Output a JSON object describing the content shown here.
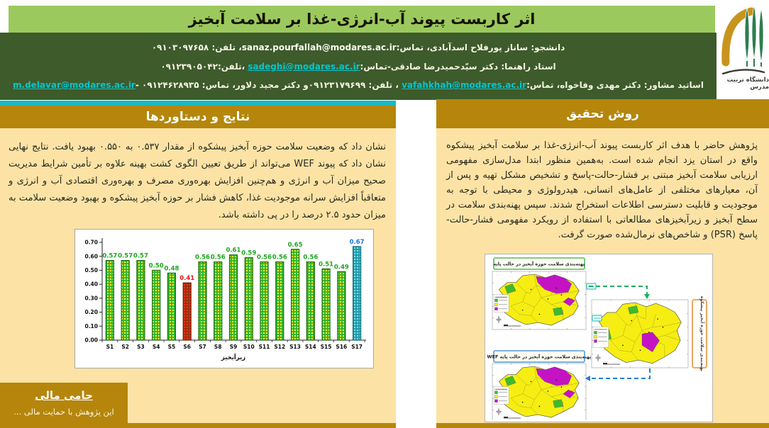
{
  "header": {
    "title": "اثر کاربست پیوند آب-انرژی-غذا بر سلامت آبخیز",
    "logo_text": "دانشگاه تربیت مدرس",
    "contact": {
      "line1": {
        "p1": "دانشجو: ساناز پورفلاح اسدآبادی، تماس:",
        "email": "sanaz.pourfallah@modares.ac.ir",
        "p2": "، تلفن: ۰۹۱۰۳۰۹۷۶۵۸"
      },
      "line2": {
        "p1": "استاد راهنما: دکتر سیّدحمیدرضا صادقی-تماس:",
        "email": "sadeghi@modares.ac.ir",
        "p2": " ،تلفن:۰۹۱۲۳۹۰۵۰۴۲"
      },
      "line3": {
        "p1": "اساتید مشاور: دکتر مهدی وفاخواه، تماس:",
        "email1": "vafahkhah@modares.ac.ir",
        "p2": " ، تلفن: ۰۹۱۲۳۱۷۹۶۹۹و دکتر مجید دلاور، تماس: ",
        "email2": "m.delavar@modares.ac.ir",
        "p3": "- ۰۹۱۲۴۶۲۸۹۳۵"
      }
    }
  },
  "sections": {
    "results": {
      "title": "نتایج و دستاوردها",
      "body": "نشان داد که وضعیت سلامت حوزه آبخیز پیشکوه از مقدار ۰.۵۳۷ به ۰.۵۵۰ بهبود یافت. نتایج نهایی نشان داد که پیوند WEF می‌تواند از طریق تعیین الگوی کشت بهینه علاوه بر تأمین شرایط مدیریت صحیح میزان آب و انرژی و هم‌چنین افزایش بهره‌وری مصرف و بهره‌وری اقتصادی آب و انرژی و متعاقباً افزایش سرانه موجودیت غذا، کاهش فشار بر حوزه آبخیز پیشکوه و بهبود وضعیت سلامت به میزان حدود ۲.۵ درصد را در پی داشته باشد."
    },
    "method": {
      "title": "روش تحقیق",
      "body": "پژوهش حاضر با هدف اثر کاربست پیوند آب-انرژی-غذا بر سلامت آبخیز پیشکوه واقع در استان یزد انجام شده است. به‌همین منظور ابتدا مدل‌سازی مفهومی ارزیابی سلامت آبخیز مبتنی بر فشار-حالت-پاسخ و تشخیص مشکل تهیه و پس از آن، معیارهای مختلفی از عامل‌های انسانی، هیدرولوژی و محیطی با توجه به موجودیت و قابلیت دسترسی اطلاعات استخراج شدند. سپس پهنه‌بندی سلامت در سطح آبخیز و زیرآبخیزهای مطالعاتی با استفاده از رویکرد مفهومی فشار-حالت-پاسخ (PSR) و شاخص‌های نرمال‌شده صورت گرفت."
    }
  },
  "chart_data": {
    "type": "bar",
    "categories": [
      "S1",
      "S2",
      "S3",
      "S4",
      "S5",
      "S6",
      "S7",
      "S8",
      "S9",
      "S10",
      "S11",
      "S12",
      "S13",
      "S14",
      "S15",
      "S16",
      "S17"
    ],
    "values": [
      0.57,
      0.57,
      0.57,
      0.5,
      0.48,
      0.41,
      0.56,
      0.56,
      0.61,
      0.59,
      0.56,
      0.56,
      0.65,
      0.56,
      0.51,
      0.49,
      0.67
    ],
    "title": "",
    "xlabel": "زیرآبخیز",
    "ylabel": "",
    "ylim": [
      0,
      0.7
    ],
    "yticks": [
      0.0,
      0.1,
      0.2,
      0.3,
      0.4,
      0.5,
      0.6,
      0.7
    ],
    "grid": false,
    "highlight": {
      "min_index": 5,
      "max_index": 16
    },
    "bar_colors": {
      "default": "#2bb32b",
      "min": "#9c2e08",
      "max": "#1b98a9"
    },
    "label_colors": {
      "default": "#1ca51c",
      "min": "#e31515",
      "max": "#1e72d8"
    }
  },
  "maps": {
    "map_base_title": "پهنه‌بندی سلامت حوزه آبخیز در حالت پایه",
    "map_wef_title": "پهنه‌بندی سلامت حوزه آبخیز در حالت پایه WEF",
    "side_label": "پهنه‌بندی سلامت حوزه آبخیز پیشکوه",
    "class_colors": {
      "good": "#3dbb2d",
      "medium": "#f6ee12",
      "poor": "#c413c4"
    }
  },
  "sponsor": {
    "title": "حامی مالی",
    "body": "این پژوهش با حمایت مالی ..."
  },
  "colors": {
    "title_band": "#9cc95d",
    "info_band": "#3d5b2b",
    "gold": "#b5860b",
    "cream": "#fce3a5",
    "teal_accent": "#18b9c0",
    "email_link": "#00c6cf"
  }
}
